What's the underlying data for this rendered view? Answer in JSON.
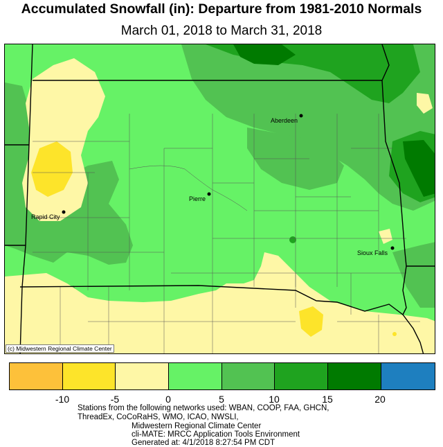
{
  "title": "Accumulated Snowfall (in): Departure from 1981-2010 Normals",
  "subtitle": "March 01, 2018 to March 31, 2018",
  "credit": "(c) Midwestern Regional Climate Center",
  "legend": {
    "bins": [
      {
        "color": "#fdc13a"
      },
      {
        "color": "#fde42a"
      },
      {
        "color": "#fef7a6"
      },
      {
        "color": "#66f266"
      },
      {
        "color": "#52c252"
      },
      {
        "color": "#1fa31f"
      },
      {
        "color": "#007a00"
      },
      {
        "color": "#1e7fbf"
      }
    ],
    "ticks": [
      "-10",
      "-5",
      "0",
      "5",
      "10",
      "15",
      "20"
    ]
  },
  "cities": [
    {
      "name": "Aberdeen"
    },
    {
      "name": "Pierre"
    },
    {
      "name": "Rapid City"
    },
    {
      "name": "Sioux Falls"
    }
  ],
  "footer": {
    "line1": "Stations from the following networks used: WBAN, COOP, FAA, GHCN,",
    "line2": "ThreadEx, CoCoRaHS, WMO, ICAO, NWSLI,",
    "line3": "Midwestern Regional Climate Center",
    "line4": "cli-MATE: MRCC Application Tools Environment",
    "line5": "Generated at: 4/1/2018 8:27:54 PM CDT"
  }
}
